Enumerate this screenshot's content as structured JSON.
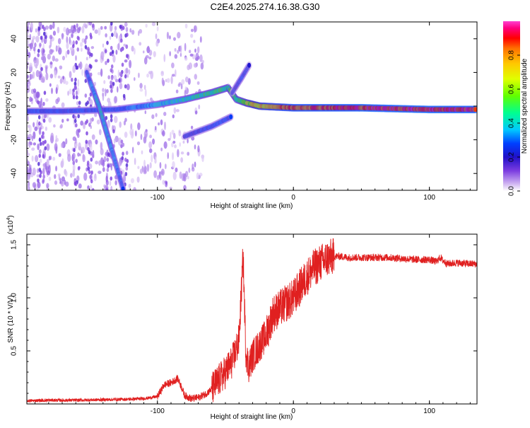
{
  "title": "C2E4.2025.274.16.38.G30",
  "chart_data": [
    {
      "type": "heatmap",
      "name": "spectrogram",
      "xlabel": "Height of straight line (km)",
      "ylabel": "Frequency (Hz)",
      "xlim": [
        -196,
        135
      ],
      "ylim": [
        -50,
        50
      ],
      "xticks": [
        -100,
        0,
        100
      ],
      "xtick_labels": [
        "-100",
        "0",
        "100"
      ],
      "yticks": [
        -40,
        -20,
        0,
        20,
        40
      ],
      "ytick_labels": [
        "-40",
        "-20",
        "0",
        "20",
        "40"
      ],
      "colorbar": {
        "label": "Normalized spectral amplitude",
        "range": [
          0,
          1
        ],
        "ticks": [
          0.0,
          0.2,
          0.4,
          0.6,
          0.8
        ],
        "tick_labels": [
          "0.0",
          "0.2",
          "0.4",
          "0.6",
          "0.8"
        ],
        "colors": [
          "#ffffff",
          "#c8a8f0",
          "#7a3ce0",
          "#2010c8",
          "#0040ff",
          "#00c8ff",
          "#00ff90",
          "#60ff00",
          "#e0ff00",
          "#ffc800",
          "#ff7000",
          "#ff0000",
          "#ff0080",
          "#ff40d0"
        ]
      },
      "features": [
        {
          "name": "main-track",
          "points": [
            [
              -196,
              -3
            ],
            [
              -170,
              -3
            ],
            [
              -130,
              -2
            ],
            [
              -100,
              1
            ],
            [
              -80,
              4
            ],
            [
              -60,
              8
            ],
            [
              -48,
              11
            ],
            [
              -42,
              4
            ],
            [
              -35,
              2
            ],
            [
              -25,
              0
            ],
            [
              0,
              -1
            ],
            [
              50,
              -1
            ],
            [
              100,
              -2
            ],
            [
              135,
              -2
            ]
          ],
          "amplitude": [
            0.3,
            0.3,
            0.3,
            0.4,
            0.45,
            0.5,
            0.5,
            0.5,
            0.6,
            0.7,
            0.85,
            0.9,
            0.92,
            0.9
          ]
        },
        {
          "name": "descending-streak",
          "points": [
            [
              -152,
              20
            ],
            [
              -143,
              0
            ],
            [
              -135,
              -22
            ],
            [
              -125,
              -50
            ]
          ],
          "amplitude": [
            0.3,
            0.45,
            0.4,
            0.3
          ]
        },
        {
          "name": "upper-branch",
          "points": [
            [
              -45,
              8
            ],
            [
              -38,
              17
            ],
            [
              -32,
              25
            ]
          ],
          "amplitude": [
            0.25,
            0.3,
            0.25
          ]
        },
        {
          "name": "lower-branch",
          "points": [
            [
              -80,
              -18
            ],
            [
              -60,
              -12
            ],
            [
              -45,
              -6
            ]
          ],
          "amplitude": [
            0.25,
            0.3,
            0.3
          ]
        }
      ]
    },
    {
      "type": "line",
      "name": "snr",
      "xlabel": "Height of straight line (km)",
      "ylabel": "SNR (10 * V/V)",
      "y_scale_label": "(x10",
      "y_scale_exp": "4",
      "y_scale_close": ")",
      "xlim": [
        -196,
        135
      ],
      "ylim": [
        0,
        16000
      ],
      "xticks": [
        -100,
        0,
        100
      ],
      "xtick_labels": [
        "-100",
        "0",
        "100"
      ],
      "yticks": [
        5000,
        10000,
        15000
      ],
      "ytick_labels": [
        "0.5",
        "1.0",
        "1.5"
      ],
      "color": "#e02020",
      "x": [
        -196,
        -180,
        -160,
        -140,
        -120,
        -110,
        -100,
        -95,
        -90,
        -85,
        -82,
        -80,
        -75,
        -70,
        -65,
        -60,
        -55,
        -50,
        -45,
        -40,
        -37,
        -35,
        -33,
        -30,
        -25,
        -20,
        -15,
        -10,
        -5,
        0,
        5,
        10,
        15,
        20,
        25,
        30,
        35,
        40,
        50,
        60,
        70,
        80,
        90,
        100,
        105,
        108,
        110,
        113,
        120,
        130,
        135
      ],
      "values": [
        300,
        350,
        350,
        400,
        450,
        500,
        700,
        1800,
        2000,
        2400,
        1500,
        800,
        500,
        600,
        900,
        1400,
        2200,
        3000,
        4000,
        6000,
        14000,
        5000,
        3500,
        4500,
        5500,
        6500,
        8500,
        9000,
        9500,
        10000,
        11000,
        12000,
        12800,
        13300,
        13700,
        13900,
        13900,
        13800,
        13800,
        13800,
        13800,
        13700,
        13600,
        13600,
        13400,
        13800,
        13500,
        13200,
        13300,
        13200,
        13200
      ]
    }
  ]
}
